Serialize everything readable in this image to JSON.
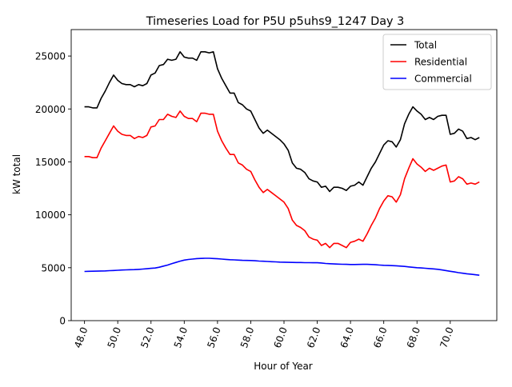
{
  "chart_data": {
    "type": "line",
    "title": "Timeseries Load for P5U p5uhs9_1247  Day 3",
    "xlabel": "Hour of Year",
    "ylabel": "kW total",
    "xlim": [
      47.2,
      72.8
    ],
    "ylim": [
      0,
      27500
    ],
    "x_ticks": [
      48,
      50,
      52,
      54,
      56,
      58,
      60,
      62,
      64,
      66,
      68,
      70
    ],
    "x_tick_labels": [
      "48.0",
      "50.0",
      "52.0",
      "54.0",
      "56.0",
      "58.0",
      "60.0",
      "62.0",
      "64.0",
      "66.0",
      "68.0",
      "70.0"
    ],
    "y_ticks": [
      0,
      5000,
      10000,
      15000,
      20000,
      25000
    ],
    "y_tick_labels": [
      "0",
      "5000",
      "10000",
      "15000",
      "20000",
      "25000"
    ],
    "legend_position": "top-right",
    "x": [
      48.0,
      48.25,
      48.5,
      48.75,
      49.0,
      49.25,
      49.5,
      49.75,
      50.0,
      50.25,
      50.5,
      50.75,
      51.0,
      51.25,
      51.5,
      51.75,
      52.0,
      52.25,
      52.5,
      52.75,
      53.0,
      53.25,
      53.5,
      53.75,
      54.0,
      54.25,
      54.5,
      54.75,
      55.0,
      55.25,
      55.5,
      55.75,
      56.0,
      56.25,
      56.5,
      56.75,
      57.0,
      57.25,
      57.5,
      57.75,
      58.0,
      58.25,
      58.5,
      58.75,
      59.0,
      59.25,
      59.5,
      59.75,
      60.0,
      60.25,
      60.5,
      60.75,
      61.0,
      61.25,
      61.5,
      61.75,
      62.0,
      62.25,
      62.5,
      62.75,
      63.0,
      63.25,
      63.5,
      63.75,
      64.0,
      64.25,
      64.5,
      64.75,
      65.0,
      65.25,
      65.5,
      65.75,
      66.0,
      66.25,
      66.5,
      66.75,
      67.0,
      67.25,
      67.5,
      67.75,
      68.0,
      68.25,
      68.5,
      68.75,
      69.0,
      69.25,
      69.5,
      69.75,
      70.0,
      70.25,
      70.5,
      70.75,
      71.0,
      71.25,
      71.5,
      71.75
    ],
    "series": [
      {
        "name": "Total",
        "color": "#000000",
        "values": [
          20200,
          20200,
          20100,
          20100,
          21000,
          21700,
          22500,
          23200,
          22700,
          22400,
          22300,
          22300,
          22100,
          22300,
          22200,
          22400,
          23200,
          23400,
          24100,
          24200,
          24700,
          24600,
          24700,
          25400,
          24900,
          24800,
          24800,
          24600,
          25400,
          25400,
          25300,
          25400,
          23800,
          22900,
          22200,
          21500,
          21500,
          20600,
          20400,
          20000,
          19800,
          19000,
          18200,
          17700,
          18000,
          17700,
          17400,
          17100,
          16700,
          16100,
          14900,
          14400,
          14300,
          14000,
          13400,
          13200,
          13100,
          12600,
          12700,
          12200,
          12600,
          12600,
          12500,
          12300,
          12700,
          12800,
          13100,
          12800,
          13600,
          14400,
          15000,
          15800,
          16600,
          17000,
          16900,
          16400,
          17100,
          18600,
          19500,
          20200,
          19800,
          19500,
          19000,
          19200,
          19000,
          19300,
          19400,
          19400,
          17600,
          17700,
          18100,
          17900,
          17200,
          17300,
          17100,
          17300
        ]
      },
      {
        "name": "Residential",
        "color": "#ff0000",
        "values": [
          15500,
          15500,
          15400,
          15400,
          16300,
          17000,
          17700,
          18400,
          17900,
          17600,
          17500,
          17500,
          17200,
          17400,
          17300,
          17500,
          18300,
          18400,
          19000,
          19000,
          19500,
          19300,
          19200,
          19800,
          19300,
          19100,
          19100,
          18800,
          19600,
          19600,
          19500,
          19500,
          17900,
          17000,
          16300,
          15700,
          15700,
          14900,
          14700,
          14300,
          14100,
          13300,
          12600,
          12100,
          12400,
          12100,
          11800,
          11500,
          11200,
          10600,
          9500,
          9000,
          8800,
          8500,
          7900,
          7700,
          7600,
          7100,
          7300,
          6900,
          7300,
          7300,
          7100,
          6900,
          7400,
          7500,
          7700,
          7500,
          8200,
          9000,
          9700,
          10600,
          11300,
          11800,
          11700,
          11200,
          11900,
          13400,
          14400,
          15300,
          14800,
          14500,
          14100,
          14400,
          14200,
          14400,
          14600,
          14700,
          13100,
          13200,
          13600,
          13400,
          12900,
          13000,
          12900,
          13100
        ]
      },
      {
        "name": "Commercial",
        "color": "#0000ff",
        "values": [
          4650,
          4660,
          4670,
          4680,
          4690,
          4700,
          4720,
          4740,
          4760,
          4780,
          4800,
          4810,
          4820,
          4840,
          4870,
          4900,
          4940,
          4970,
          5050,
          5150,
          5250,
          5380,
          5500,
          5620,
          5720,
          5780,
          5820,
          5860,
          5880,
          5890,
          5890,
          5870,
          5850,
          5820,
          5790,
          5760,
          5740,
          5720,
          5700,
          5690,
          5680,
          5660,
          5630,
          5610,
          5590,
          5570,
          5550,
          5530,
          5520,
          5510,
          5500,
          5490,
          5490,
          5480,
          5480,
          5470,
          5470,
          5450,
          5400,
          5380,
          5360,
          5340,
          5330,
          5320,
          5300,
          5300,
          5310,
          5320,
          5320,
          5300,
          5280,
          5250,
          5230,
          5220,
          5200,
          5180,
          5150,
          5120,
          5080,
          5040,
          5000,
          4980,
          4950,
          4920,
          4890,
          4850,
          4790,
          4730,
          4660,
          4600,
          4530,
          4480,
          4430,
          4390,
          4340,
          4290
        ]
      }
    ]
  }
}
